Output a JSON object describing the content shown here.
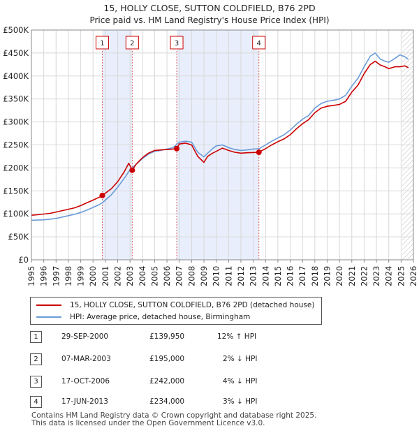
{
  "colors": {
    "red": "#cc0000",
    "blue": "#6a9bd8",
    "band": "#e8eefb",
    "grid": "#d8d8d8"
  },
  "chart_data": {
    "type": "line",
    "title": "15, HOLLY CLOSE, SUTTON COLDFIELD, B76 2PD",
    "subtitle": "Price paid vs. HM Land Registry's House Price Index (HPI)",
    "ylim": [
      0,
      500000
    ],
    "xlim": [
      1995,
      2026
    ],
    "y_ticks": [
      0,
      50000,
      100000,
      150000,
      200000,
      250000,
      300000,
      350000,
      400000,
      450000,
      500000
    ],
    "y_tick_labels": [
      "£0",
      "£50K",
      "£100K",
      "£150K",
      "£200K",
      "£250K",
      "£300K",
      "£350K",
      "£400K",
      "£450K",
      "£500K"
    ],
    "x_ticks": [
      1995,
      1996,
      1997,
      1998,
      1999,
      2000,
      2001,
      2002,
      2003,
      2004,
      2005,
      2006,
      2007,
      2008,
      2009,
      2010,
      2011,
      2012,
      2013,
      2014,
      2015,
      2016,
      2017,
      2018,
      2019,
      2020,
      2021,
      2022,
      2023,
      2024,
      2025,
      2026
    ],
    "x_tick_labels": [
      "1995",
      "1996",
      "1997",
      "1998",
      "1999",
      "2000",
      "2001",
      "2002",
      "2003",
      "2004",
      "2005",
      "2006",
      "2007",
      "2008",
      "2009",
      "2010",
      "2011",
      "2012",
      "2013",
      "2014",
      "2015",
      "2016",
      "2017",
      "2018",
      "2019",
      "2020",
      "2021",
      "2022",
      "2023",
      "2024",
      "2025",
      "2026"
    ],
    "grid": true,
    "bands": [
      [
        2000.75,
        2003.18
      ],
      [
        2006.79,
        2013.46
      ]
    ],
    "hatch_from": 2025.1,
    "series": [
      {
        "name": "15, HOLLY CLOSE, SUTTON COLDFIELD, B76 2PD (detached house)",
        "color": "#cc0000",
        "x": [
          1995.0,
          1995.5,
          1996.0,
          1996.5,
          1997.0,
          1997.5,
          1998.0,
          1998.5,
          1999.0,
          1999.5,
          2000.0,
          2000.5,
          2000.75,
          2001.0,
          2001.5,
          2002.0,
          2002.5,
          2002.9,
          2003.18,
          2003.5,
          2004.0,
          2004.5,
          2005.0,
          2005.5,
          2006.0,
          2006.5,
          2006.79,
          2007.0,
          2007.5,
          2008.0,
          2008.5,
          2009.0,
          2009.3,
          2009.7,
          2010.0,
          2010.5,
          2011.0,
          2011.5,
          2012.0,
          2012.5,
          2013.0,
          2013.46,
          2014.0,
          2014.5,
          2015.0,
          2015.5,
          2016.0,
          2016.5,
          2017.0,
          2017.5,
          2018.0,
          2018.5,
          2019.0,
          2019.5,
          2020.0,
          2020.5,
          2021.0,
          2021.5,
          2022.0,
          2022.5,
          2022.9,
          2023.3,
          2023.7,
          2024.0,
          2024.5,
          2024.9,
          2025.3,
          2025.6
        ],
        "values": [
          97000,
          98000,
          99500,
          101000,
          104000,
          107000,
          110000,
          113000,
          118000,
          124000,
          130000,
          136000,
          139950,
          145000,
          155000,
          170000,
          190000,
          210000,
          195000,
          208000,
          222000,
          232000,
          238000,
          239000,
          240000,
          241000,
          242000,
          252000,
          254000,
          250000,
          225000,
          212000,
          225000,
          232000,
          236000,
          243000,
          238000,
          234000,
          232000,
          233000,
          233500,
          234000,
          242000,
          250000,
          257000,
          263000,
          272000,
          285000,
          296000,
          305000,
          320000,
          330000,
          334000,
          336000,
          338000,
          345000,
          365000,
          380000,
          405000,
          425000,
          432000,
          424000,
          420000,
          416000,
          420000,
          420000,
          422000,
          418000
        ]
      },
      {
        "name": "HPI: Average price, detached house, Birmingham",
        "color": "#6a9bd8",
        "x": [
          1995.0,
          1995.5,
          1996.0,
          1996.5,
          1997.0,
          1997.5,
          1998.0,
          1998.5,
          1999.0,
          1999.5,
          2000.0,
          2000.5,
          2000.75,
          2001.0,
          2001.5,
          2002.0,
          2002.5,
          2003.0,
          2003.5,
          2004.0,
          2004.5,
          2005.0,
          2005.5,
          2006.0,
          2006.5,
          2007.0,
          2007.5,
          2008.0,
          2008.5,
          2009.0,
          2009.3,
          2009.7,
          2010.0,
          2010.5,
          2011.0,
          2011.5,
          2012.0,
          2012.5,
          2013.0,
          2013.5,
          2014.0,
          2014.5,
          2015.0,
          2015.5,
          2016.0,
          2016.5,
          2017.0,
          2017.5,
          2018.0,
          2018.5,
          2019.0,
          2019.5,
          2020.0,
          2020.5,
          2021.0,
          2021.5,
          2022.0,
          2022.5,
          2022.9,
          2023.3,
          2023.7,
          2024.0,
          2024.5,
          2024.9,
          2025.3,
          2025.6
        ],
        "values": [
          86000,
          86500,
          87000,
          88500,
          90000,
          93000,
          96000,
          99000,
          103000,
          108000,
          114000,
          120000,
          124000,
          130000,
          142000,
          158000,
          176000,
          196000,
          208000,
          220000,
          230000,
          236000,
          238000,
          241000,
          244000,
          256000,
          258000,
          256000,
          234000,
          224000,
          232000,
          242000,
          248000,
          250000,
          244000,
          240000,
          238000,
          239000,
          241000,
          242000,
          250000,
          258000,
          265000,
          272000,
          282000,
          295000,
          306000,
          314000,
          330000,
          340000,
          345000,
          347000,
          350000,
          358000,
          378000,
          395000,
          420000,
          443000,
          450000,
          437000,
          432000,
          430000,
          438000,
          446000,
          442000,
          436000
        ]
      }
    ],
    "sales": [
      {
        "num": "1",
        "x": 2000.75,
        "value": 139950
      },
      {
        "num": "2",
        "x": 2003.18,
        "value": 195000
      },
      {
        "num": "3",
        "x": 2006.79,
        "value": 242000
      },
      {
        "num": "4",
        "x": 2013.46,
        "value": 234000
      }
    ]
  },
  "legend": {
    "red_label": "15, HOLLY CLOSE, SUTTON COLDFIELD, B76 2PD (detached house)",
    "blue_label": "HPI: Average price, detached house, Birmingham"
  },
  "table": [
    {
      "num": "1",
      "date": "29-SEP-2000",
      "price": "£139,950",
      "hpi": "12% ↑ HPI"
    },
    {
      "num": "2",
      "date": "07-MAR-2003",
      "price": "£195,000",
      "hpi": "2% ↓ HPI"
    },
    {
      "num": "3",
      "date": "17-OCT-2006",
      "price": "£242,000",
      "hpi": "4% ↓ HPI"
    },
    {
      "num": "4",
      "date": "17-JUN-2013",
      "price": "£234,000",
      "hpi": "3% ↓ HPI"
    }
  ],
  "footer": {
    "line1": "Contains HM Land Registry data © Crown copyright and database right 2025.",
    "line2": "This data is licensed under the Open Government Licence v3.0."
  }
}
